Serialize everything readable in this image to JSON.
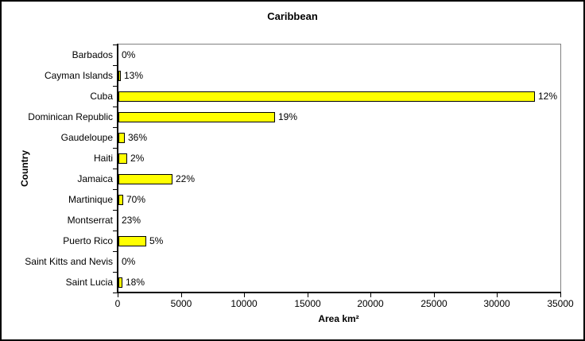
{
  "chart_data": {
    "type": "bar",
    "orientation": "horizontal",
    "title": "Caribbean",
    "xlabel": "Area km²",
    "ylabel": "Country",
    "xlim": [
      0,
      35000
    ],
    "xticks": [
      0,
      5000,
      10000,
      15000,
      20000,
      25000,
      30000,
      35000
    ],
    "categories": [
      "Barbados",
      "Cayman Islands",
      "Cuba",
      "Dominican Republic",
      "Gaudeloupe",
      "Haiti",
      "Jamaica",
      "Martinique",
      "Montserrat",
      "Puerto Rico",
      "Saint Kitts and Nevis",
      "Saint Lucia"
    ],
    "values": [
      0,
      130,
      32900,
      12400,
      520,
      670,
      4280,
      380,
      0,
      2200,
      0,
      320
    ],
    "data_labels": [
      "0%",
      "13%",
      "12%",
      "19%",
      "36%",
      "2%",
      "22%",
      "70%",
      "23%",
      "5%",
      "0%",
      "18%"
    ],
    "bar_color": "#FFFF00",
    "bar_border_color": "#000000",
    "plot_border_color": "#808080",
    "axis_color": "#000000",
    "background_color": "#FFFFFF",
    "grid": false,
    "legend": false
  }
}
